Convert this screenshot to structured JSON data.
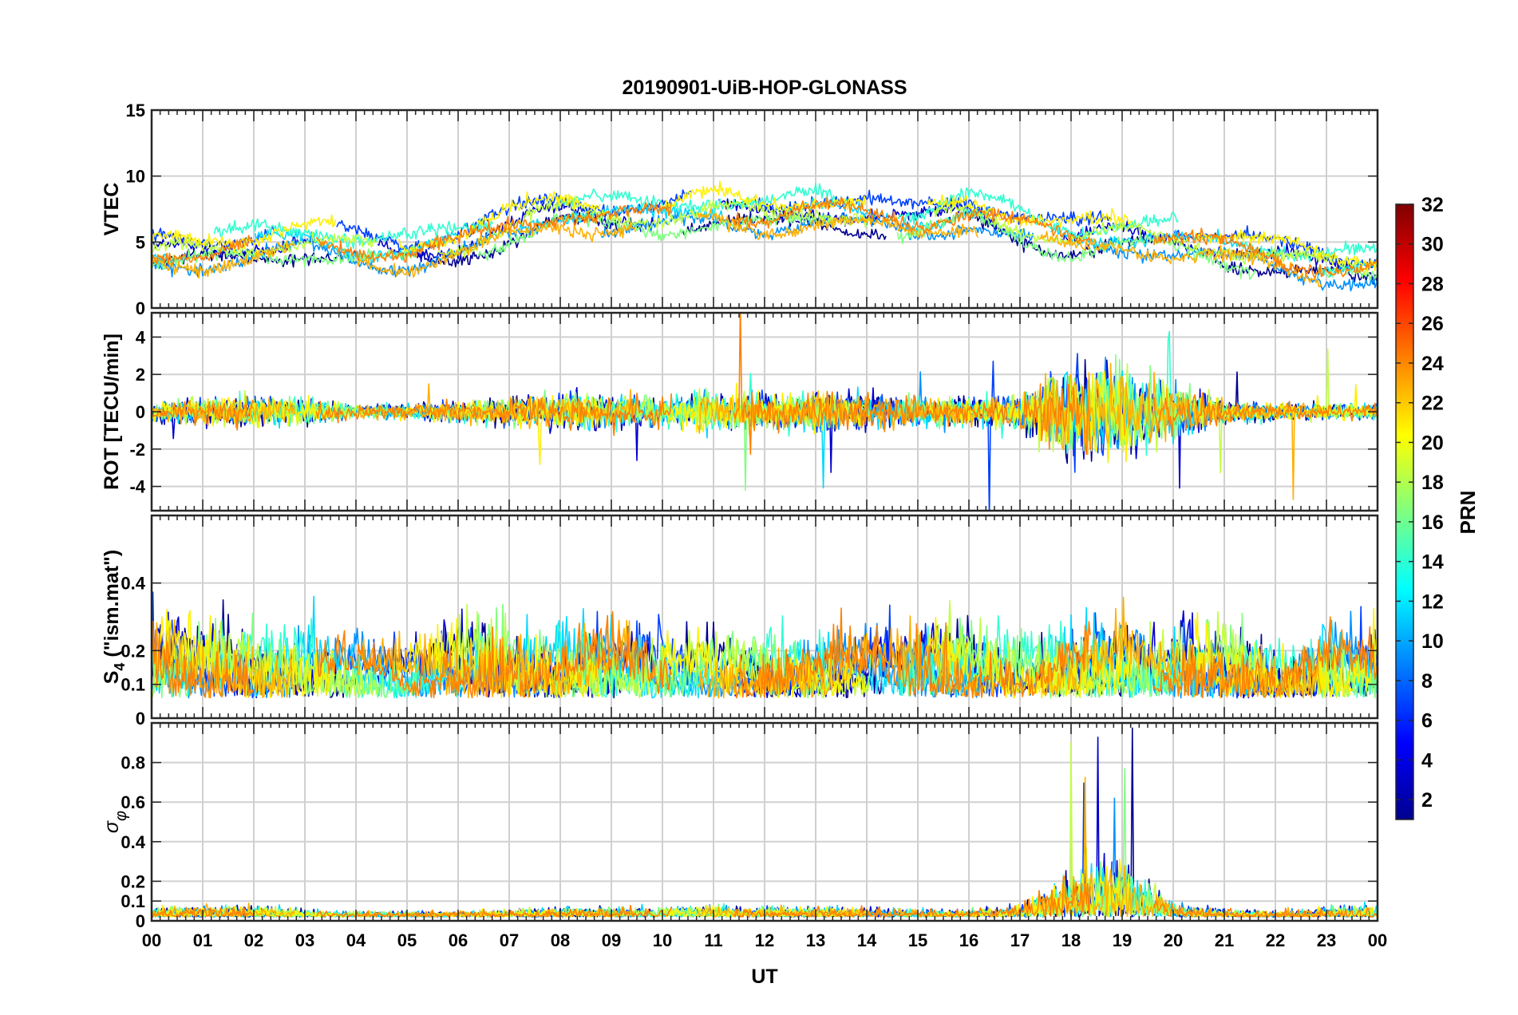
{
  "chart_data": {
    "type": "line",
    "title": "20190901-UiB-HOP-GLONASS",
    "xlabel": "UT",
    "xlim": [
      0,
      24
    ],
    "x_tick_labels": [
      "00",
      "01",
      "02",
      "03",
      "04",
      "05",
      "06",
      "07",
      "08",
      "09",
      "10",
      "11",
      "12",
      "13",
      "14",
      "15",
      "16",
      "17",
      "18",
      "19",
      "20",
      "21",
      "22",
      "23",
      "00"
    ],
    "grid": true,
    "colorbar": {
      "label": "PRN",
      "range": [
        1,
        32
      ],
      "colormap": "jet",
      "ticks": [
        "2",
        "4",
        "6",
        "8",
        "10",
        "12",
        "14",
        "16",
        "18",
        "20",
        "22",
        "24",
        "26",
        "28",
        "30",
        "32"
      ],
      "placement": "right"
    },
    "panels": [
      {
        "id": "vtec",
        "ylabel": "VTEC",
        "ylim": [
          0,
          15
        ],
        "y_ticks": [
          0,
          5,
          10,
          15
        ],
        "y_tick_labels": [
          "0",
          "5",
          "10",
          "15"
        ],
        "trend": [
          [
            0,
            4.2
          ],
          [
            1,
            4.3
          ],
          [
            2,
            4.8
          ],
          [
            3,
            5.3
          ],
          [
            4,
            4.6
          ],
          [
            5,
            4.2
          ],
          [
            6,
            4.8
          ],
          [
            7,
            6.2
          ],
          [
            8,
            7.3
          ],
          [
            9,
            7.0
          ],
          [
            10,
            6.9
          ],
          [
            11,
            7.5
          ],
          [
            12,
            7.0
          ],
          [
            13,
            7.5
          ],
          [
            14,
            7.0
          ],
          [
            15,
            6.5
          ],
          [
            16,
            7.5
          ],
          [
            17,
            6.2
          ],
          [
            18,
            5.2
          ],
          [
            19,
            5.6
          ],
          [
            20,
            5.3
          ],
          [
            21,
            4.6
          ],
          [
            22,
            3.8
          ],
          [
            23,
            3.2
          ],
          [
            24,
            3.0
          ]
        ]
      },
      {
        "id": "rot",
        "ylabel": "ROT [TECU/min]",
        "ylim": [
          -5.3,
          5.3
        ],
        "y_ticks": [
          -4,
          -2,
          0,
          2,
          4
        ],
        "y_tick_labels": [
          "-4",
          "-2",
          "0",
          "2",
          "4"
        ],
        "trend": [
          [
            0,
            0.6
          ],
          [
            1,
            0.9
          ],
          [
            2,
            1.0
          ],
          [
            3,
            0.9
          ],
          [
            4,
            0.5
          ],
          [
            5,
            0.5
          ],
          [
            6,
            0.7
          ],
          [
            7,
            0.9
          ],
          [
            8,
            1.2
          ],
          [
            9,
            1.1
          ],
          [
            10,
            1.0
          ],
          [
            11,
            1.4
          ],
          [
            12,
            1.2
          ],
          [
            13,
            1.3
          ],
          [
            14,
            1.2
          ],
          [
            15,
            1.0
          ],
          [
            16,
            1.0
          ],
          [
            17,
            1.3
          ],
          [
            18,
            3.2
          ],
          [
            19,
            3.0
          ],
          [
            20,
            1.8
          ],
          [
            21,
            0.8
          ],
          [
            22,
            0.6
          ],
          [
            23,
            0.5
          ],
          [
            24,
            0.6
          ]
        ]
      },
      {
        "id": "s4",
        "ylabel": "S4 (\"ism.mat\")",
        "ylabel_main": "S",
        "ylabel_sub": "4",
        "ylabel_rest": " (\"ism.mat\")",
        "ylim": [
          0,
          0.6
        ],
        "y_ticks": [
          0,
          0.1,
          0.2,
          0.4
        ],
        "y_tick_labels": [
          "0",
          "0.1",
          "0.2",
          "0.4"
        ],
        "trend": [
          [
            0,
            0.2
          ],
          [
            1,
            0.17
          ],
          [
            2,
            0.16
          ],
          [
            3,
            0.17
          ],
          [
            4,
            0.13
          ],
          [
            5,
            0.12
          ],
          [
            6,
            0.18
          ],
          [
            7,
            0.19
          ],
          [
            8,
            0.16
          ],
          [
            9,
            0.18
          ],
          [
            10,
            0.15
          ],
          [
            11,
            0.15
          ],
          [
            12,
            0.14
          ],
          [
            13,
            0.15
          ],
          [
            14,
            0.16
          ],
          [
            15,
            0.18
          ],
          [
            16,
            0.16
          ],
          [
            17,
            0.16
          ],
          [
            18,
            0.17
          ],
          [
            19,
            0.18
          ],
          [
            20,
            0.17
          ],
          [
            21,
            0.19
          ],
          [
            22,
            0.14
          ],
          [
            23,
            0.16
          ],
          [
            24,
            0.17
          ]
        ]
      },
      {
        "id": "sigma_phi",
        "ylabel": "σφ",
        "ylabel_main": "σ",
        "ylabel_sub": "φ",
        "ylim": [
          0,
          1.0
        ],
        "y_ticks": [
          0,
          0.1,
          0.2,
          0.4,
          0.6,
          0.8
        ],
        "y_tick_labels": [
          "0",
          "0.1",
          "0.2",
          "0.4",
          "0.6",
          "0.8"
        ],
        "trend": [
          [
            0,
            0.05
          ],
          [
            1,
            0.06
          ],
          [
            2,
            0.06
          ],
          [
            3,
            0.04
          ],
          [
            4,
            0.03
          ],
          [
            5,
            0.03
          ],
          [
            6,
            0.03
          ],
          [
            7,
            0.04
          ],
          [
            8,
            0.05
          ],
          [
            9,
            0.05
          ],
          [
            10,
            0.05
          ],
          [
            11,
            0.06
          ],
          [
            12,
            0.05
          ],
          [
            13,
            0.05
          ],
          [
            14,
            0.05
          ],
          [
            15,
            0.04
          ],
          [
            16,
            0.04
          ],
          [
            17,
            0.06
          ],
          [
            18,
            0.25
          ],
          [
            19,
            0.3
          ],
          [
            20,
            0.08
          ],
          [
            21,
            0.04
          ],
          [
            22,
            0.03
          ],
          [
            23,
            0.05
          ],
          [
            24,
            0.06
          ]
        ]
      }
    ],
    "series_prn": [
      2,
      4,
      6,
      9,
      12,
      14,
      16,
      18,
      20,
      22,
      24
    ],
    "series_colors": [
      "#00008F",
      "#0000D0",
      "#0040FF",
      "#0090FF",
      "#00D8FF",
      "#30FFD0",
      "#80FF80",
      "#C0FF40",
      "#FFF000",
      "#FFB000",
      "#FF8000"
    ]
  }
}
